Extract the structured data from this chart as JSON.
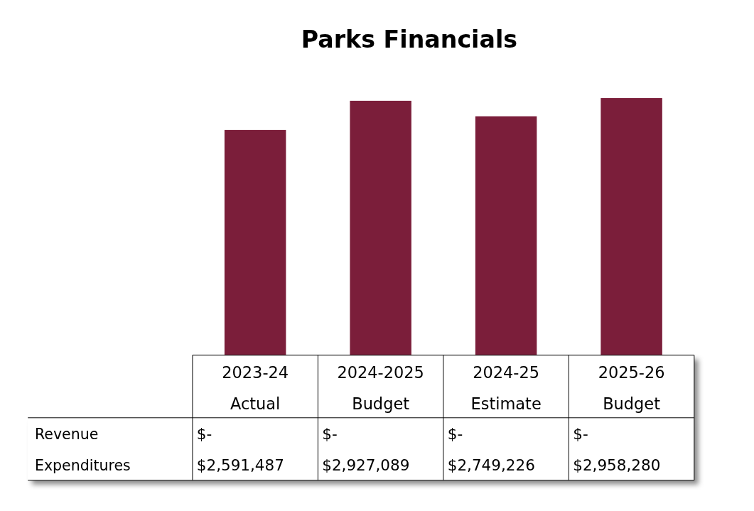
{
  "chart_data": {
    "type": "bar",
    "title": "Parks Financials",
    "categories": [
      "2023-24 Actual",
      "2024-2025 Budget",
      "2024-25 Estimate",
      "2025-26 Budget"
    ],
    "series": [
      {
        "name": "Revenue",
        "values": [
          0,
          0,
          0,
          0
        ],
        "value_labels": [
          "$-",
          "$-",
          "$-",
          "$-"
        ]
      },
      {
        "name": "Expenditures",
        "color": "#7b1e3a",
        "values": [
          2591487,
          2927089,
          2749226,
          2958280
        ],
        "value_labels": [
          "$2,591,487",
          "$2,927,089",
          "$2,749,226",
          "$2,958,280"
        ]
      }
    ],
    "stacked": true,
    "tick_labels": "x",
    "grid": false
  }
}
